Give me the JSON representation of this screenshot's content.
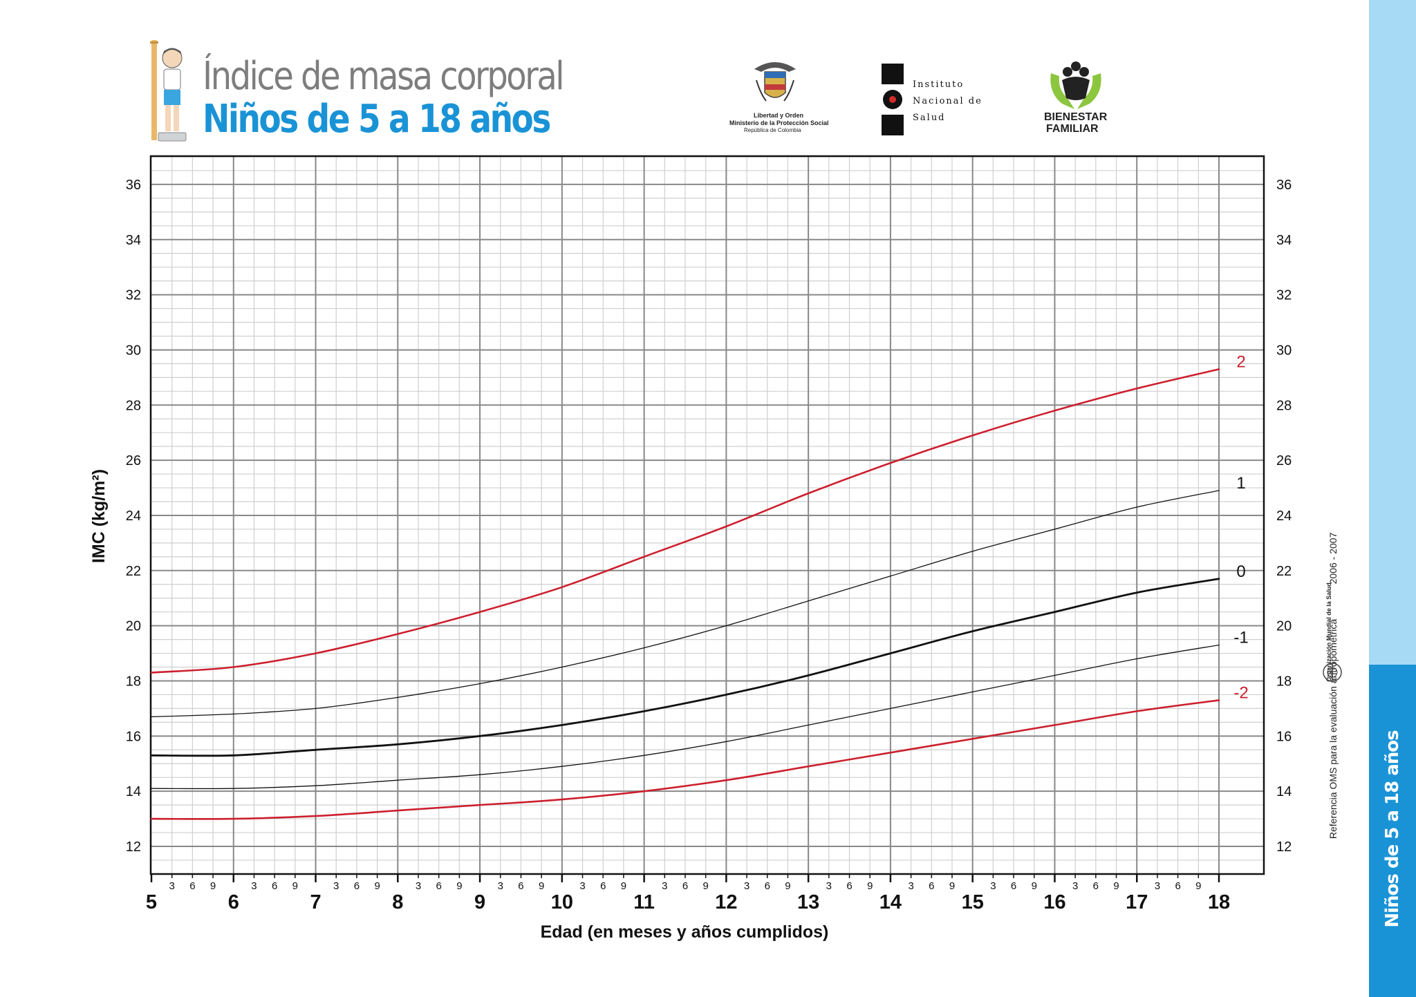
{
  "header": {
    "title_line1": "Índice de masa corporal",
    "title_line2": "Niños de 5 a 18 años"
  },
  "logos": {
    "minsalud": {
      "line1": "Libertad y Orden",
      "line2": "Ministerio de la Protección Social",
      "line3": "República de Colombia"
    },
    "ins": {
      "line1": "Instituto",
      "line2": "Nacional de",
      "line3": "Salud"
    },
    "icbf": {
      "line1": "BIENESTAR",
      "line2": "FAMILIAR"
    }
  },
  "side": {
    "reference": "Referencia OMS para la evaluación antropométrica",
    "years": "2006 - 2007",
    "oms": "Organización Mundial de la Salud",
    "tab_label": "Niños de 5 a 18 años"
  },
  "colors": {
    "brand_blue": "#1a93d6",
    "sidebar_light": "#a7daf5",
    "red_curve": "#cc1f2e",
    "black_curve": "#111111"
  },
  "chart_data": {
    "type": "line",
    "title": "Índice de masa corporal",
    "subtitle": "Niños de 5 a 18 años",
    "xlabel": "Edad (en meses y años cumplidos)",
    "ylabel": "IMC (kg/m²)",
    "xlim": [
      5,
      18
    ],
    "ylim": [
      11,
      37
    ],
    "yticks": [
      12,
      14,
      16,
      18,
      20,
      22,
      24,
      26,
      28,
      30,
      32,
      34,
      36
    ],
    "year_ticks": [
      "5",
      "6",
      "7",
      "8",
      "9",
      "10",
      "11",
      "12",
      "13",
      "14",
      "15",
      "16",
      "17",
      "18"
    ],
    "month_ticks": [
      "3",
      "6",
      "9"
    ],
    "grid": true,
    "series": [
      {
        "name": "2",
        "label": "2",
        "color": "#cc1f2e",
        "width": 2.6,
        "x": [
          5,
          6,
          7,
          8,
          9,
          10,
          11,
          12,
          13,
          14,
          15,
          16,
          17,
          18
        ],
        "values": [
          18.3,
          18.5,
          19.0,
          19.7,
          20.5,
          21.4,
          22.5,
          23.6,
          24.8,
          25.9,
          26.9,
          27.8,
          28.6,
          29.3
        ]
      },
      {
        "name": "1",
        "label": "1",
        "color": "#111111",
        "width": 1.3,
        "x": [
          5,
          6,
          7,
          8,
          9,
          10,
          11,
          12,
          13,
          14,
          15,
          16,
          17,
          18
        ],
        "values": [
          16.7,
          16.8,
          17.0,
          17.4,
          17.9,
          18.5,
          19.2,
          20.0,
          20.9,
          21.8,
          22.7,
          23.5,
          24.3,
          24.9
        ]
      },
      {
        "name": "0",
        "label": "0",
        "color": "#111111",
        "width": 2.8,
        "x": [
          5,
          6,
          7,
          8,
          9,
          10,
          11,
          12,
          13,
          14,
          15,
          16,
          17,
          18
        ],
        "values": [
          15.3,
          15.3,
          15.5,
          15.7,
          16.0,
          16.4,
          16.9,
          17.5,
          18.2,
          19.0,
          19.8,
          20.5,
          21.2,
          21.7
        ]
      },
      {
        "name": "-1",
        "label": "-1",
        "color": "#111111",
        "width": 1.3,
        "x": [
          5,
          6,
          7,
          8,
          9,
          10,
          11,
          12,
          13,
          14,
          15,
          16,
          17,
          18
        ],
        "values": [
          14.1,
          14.1,
          14.2,
          14.4,
          14.6,
          14.9,
          15.3,
          15.8,
          16.4,
          17.0,
          17.6,
          18.2,
          18.8,
          19.3
        ]
      },
      {
        "name": "-2",
        "label": "-2",
        "color": "#cc1f2e",
        "width": 2.6,
        "x": [
          5,
          6,
          7,
          8,
          9,
          10,
          11,
          12,
          13,
          14,
          15,
          16,
          17,
          18
        ],
        "values": [
          13.0,
          13.0,
          13.1,
          13.3,
          13.5,
          13.7,
          14.0,
          14.4,
          14.9,
          15.4,
          15.9,
          16.4,
          16.9,
          17.3
        ]
      }
    ]
  }
}
